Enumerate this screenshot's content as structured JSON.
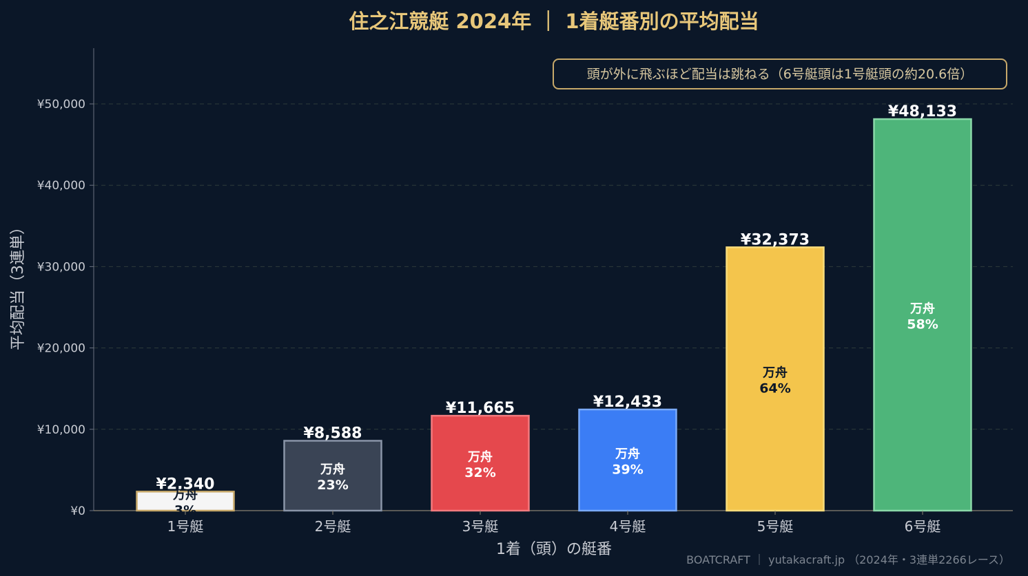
{
  "chart_data": {
    "type": "bar",
    "title": "住之江競艇 2024年 ｜ 1着艇番別の平均配当",
    "xlabel": "1着（頭）の艇番",
    "ylabel": "平均配当（3連単）",
    "ylim": [
      0,
      57000
    ],
    "yticks": [
      0,
      10000,
      20000,
      30000,
      40000,
      50000
    ],
    "ytick_labels": [
      "¥0",
      "¥10,000",
      "¥20,000",
      "¥30,000",
      "¥40,000",
      "¥50,000"
    ],
    "grid": true,
    "categories": [
      "1号艇",
      "2号艇",
      "3号艇",
      "4号艇",
      "5号艇",
      "6号艇"
    ],
    "values": [
      2340,
      8588,
      11665,
      12433,
      32373,
      48133
    ],
    "value_labels": [
      "¥2,340",
      "¥8,588",
      "¥11,665",
      "¥12,433",
      "¥32,373",
      "¥48,133"
    ],
    "inner_label": "万舟",
    "manshu_rate_labels": [
      "3%",
      "23%",
      "32%",
      "39%",
      "64%",
      "58%"
    ],
    "bar_colors": [
      "#f5f5f5",
      "#3a4455",
      "#e5484d",
      "#3b7df5",
      "#f4c54c",
      "#4eb57a"
    ],
    "bar_edge_colors": [
      "#c8a96a",
      "#8a95a8",
      "#f47a7e",
      "#7aaaf8",
      "#f8dc7a",
      "#8ad8a8"
    ],
    "inner_text_colors": [
      "#0b1728",
      "#ffffff",
      "#ffffff",
      "#ffffff",
      "#0b1728",
      "#ffffff"
    ],
    "annotation": "頭が外に飛ぶほど配当は跳ねる（6号艇頭は1号艇頭の約20.6倍）",
    "footer": "BOATCRAFT ｜ yutakacraft.jp （2024年・3連単2266レース）",
    "colors": {
      "background": "#0b1728",
      "title": "#e8c77a",
      "axis_text": "#c9ccd3",
      "grid": "#2e3b3a",
      "annotation_border": "#c8a96a",
      "annotation_text": "#d8c8a0",
      "value_label": "#ffffff",
      "footer": "#7d8590"
    }
  }
}
